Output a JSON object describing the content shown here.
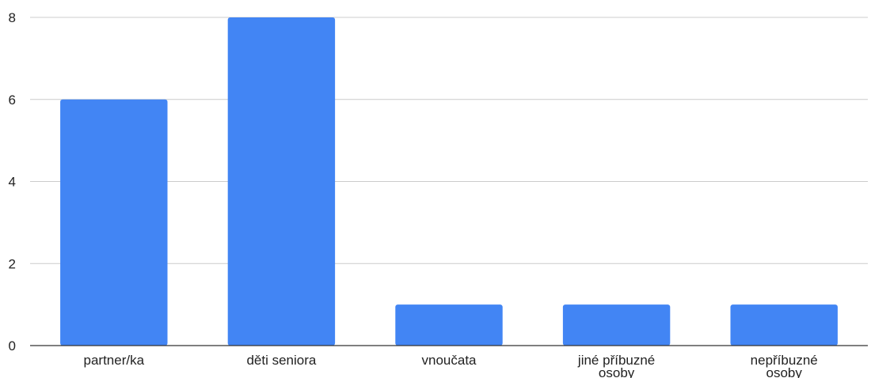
{
  "chart_data": {
    "type": "bar",
    "title": "",
    "xlabel": "",
    "ylabel": "",
    "categories": [
      [
        "partner/ka"
      ],
      [
        "děti seniora"
      ],
      [
        "vnoučata"
      ],
      [
        "jiné příbuzné",
        "osoby"
      ],
      [
        "nepříbuzné",
        "osoby"
      ]
    ],
    "values": [
      6,
      8,
      1,
      1,
      1
    ],
    "ylim": [
      0,
      8
    ],
    "yticks": [
      0,
      2,
      4,
      6,
      8
    ],
    "grid": true,
    "legend": "none",
    "colors": {
      "bar": "#4285f4"
    }
  }
}
